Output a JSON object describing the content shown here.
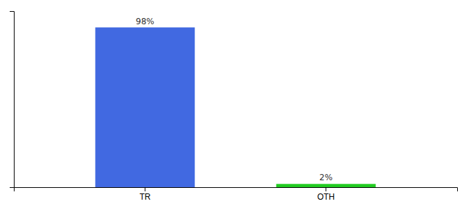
{
  "chart_data": {
    "type": "bar",
    "categories": [
      "TR",
      "OTH"
    ],
    "values": [
      98,
      2
    ],
    "value_labels": [
      "98%",
      "2%"
    ],
    "colors": [
      "#4169e1",
      "#22cc22"
    ],
    "ylim": [
      0,
      108
    ],
    "data_labels": true,
    "tick_labels": "x",
    "grid": false
  }
}
